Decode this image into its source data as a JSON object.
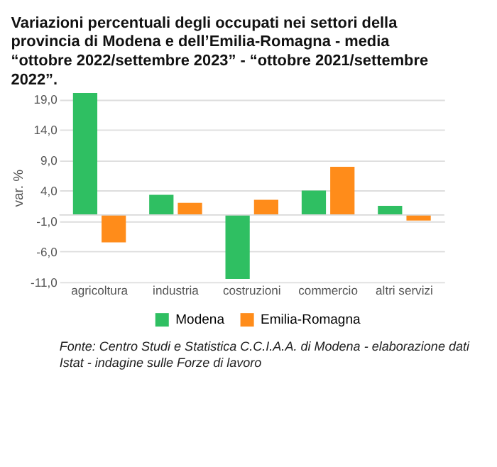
{
  "chart_data": {
    "type": "bar",
    "title": "Variazioni percentuali degli occupati nei settori della provincia di Modena e dell’Emilia-Romagna - media “ottobre 2022/settembre 2023” - “ottobre 2021/settembre 2022”.",
    "ylabel": "var. %",
    "categories": [
      "agricoltura",
      "industria",
      "costruzioni",
      "commercio",
      "altri servizi"
    ],
    "series": [
      {
        "name": "Modena",
        "color": "#2fbf62",
        "values": [
          20.0,
          3.3,
          -10.5,
          4.0,
          1.5
        ]
      },
      {
        "name": "Emilia-Romagna",
        "color": "#ff8c1a",
        "values": [
          -4.5,
          2.0,
          2.5,
          7.9,
          -0.9
        ]
      }
    ],
    "ylim": [
      -11,
      20
    ],
    "yticks": [
      {
        "value": -11,
        "label": "-11,0"
      },
      {
        "value": -6,
        "label": "-6,0"
      },
      {
        "value": -1,
        "label": "-1,0"
      },
      {
        "value": 4,
        "label": "4,0"
      },
      {
        "value": 9,
        "label": "9,0"
      },
      {
        "value": 14,
        "label": "14,0"
      },
      {
        "value": 19,
        "label": "19,0"
      }
    ],
    "grid": "y",
    "legend": "bottom",
    "annotations": [
      "Fonte: Centro Studi e Statistica C.C.I.A.A. di Modena - elaborazione dati Istat - indagine sulle Forze di lavoro"
    ]
  }
}
